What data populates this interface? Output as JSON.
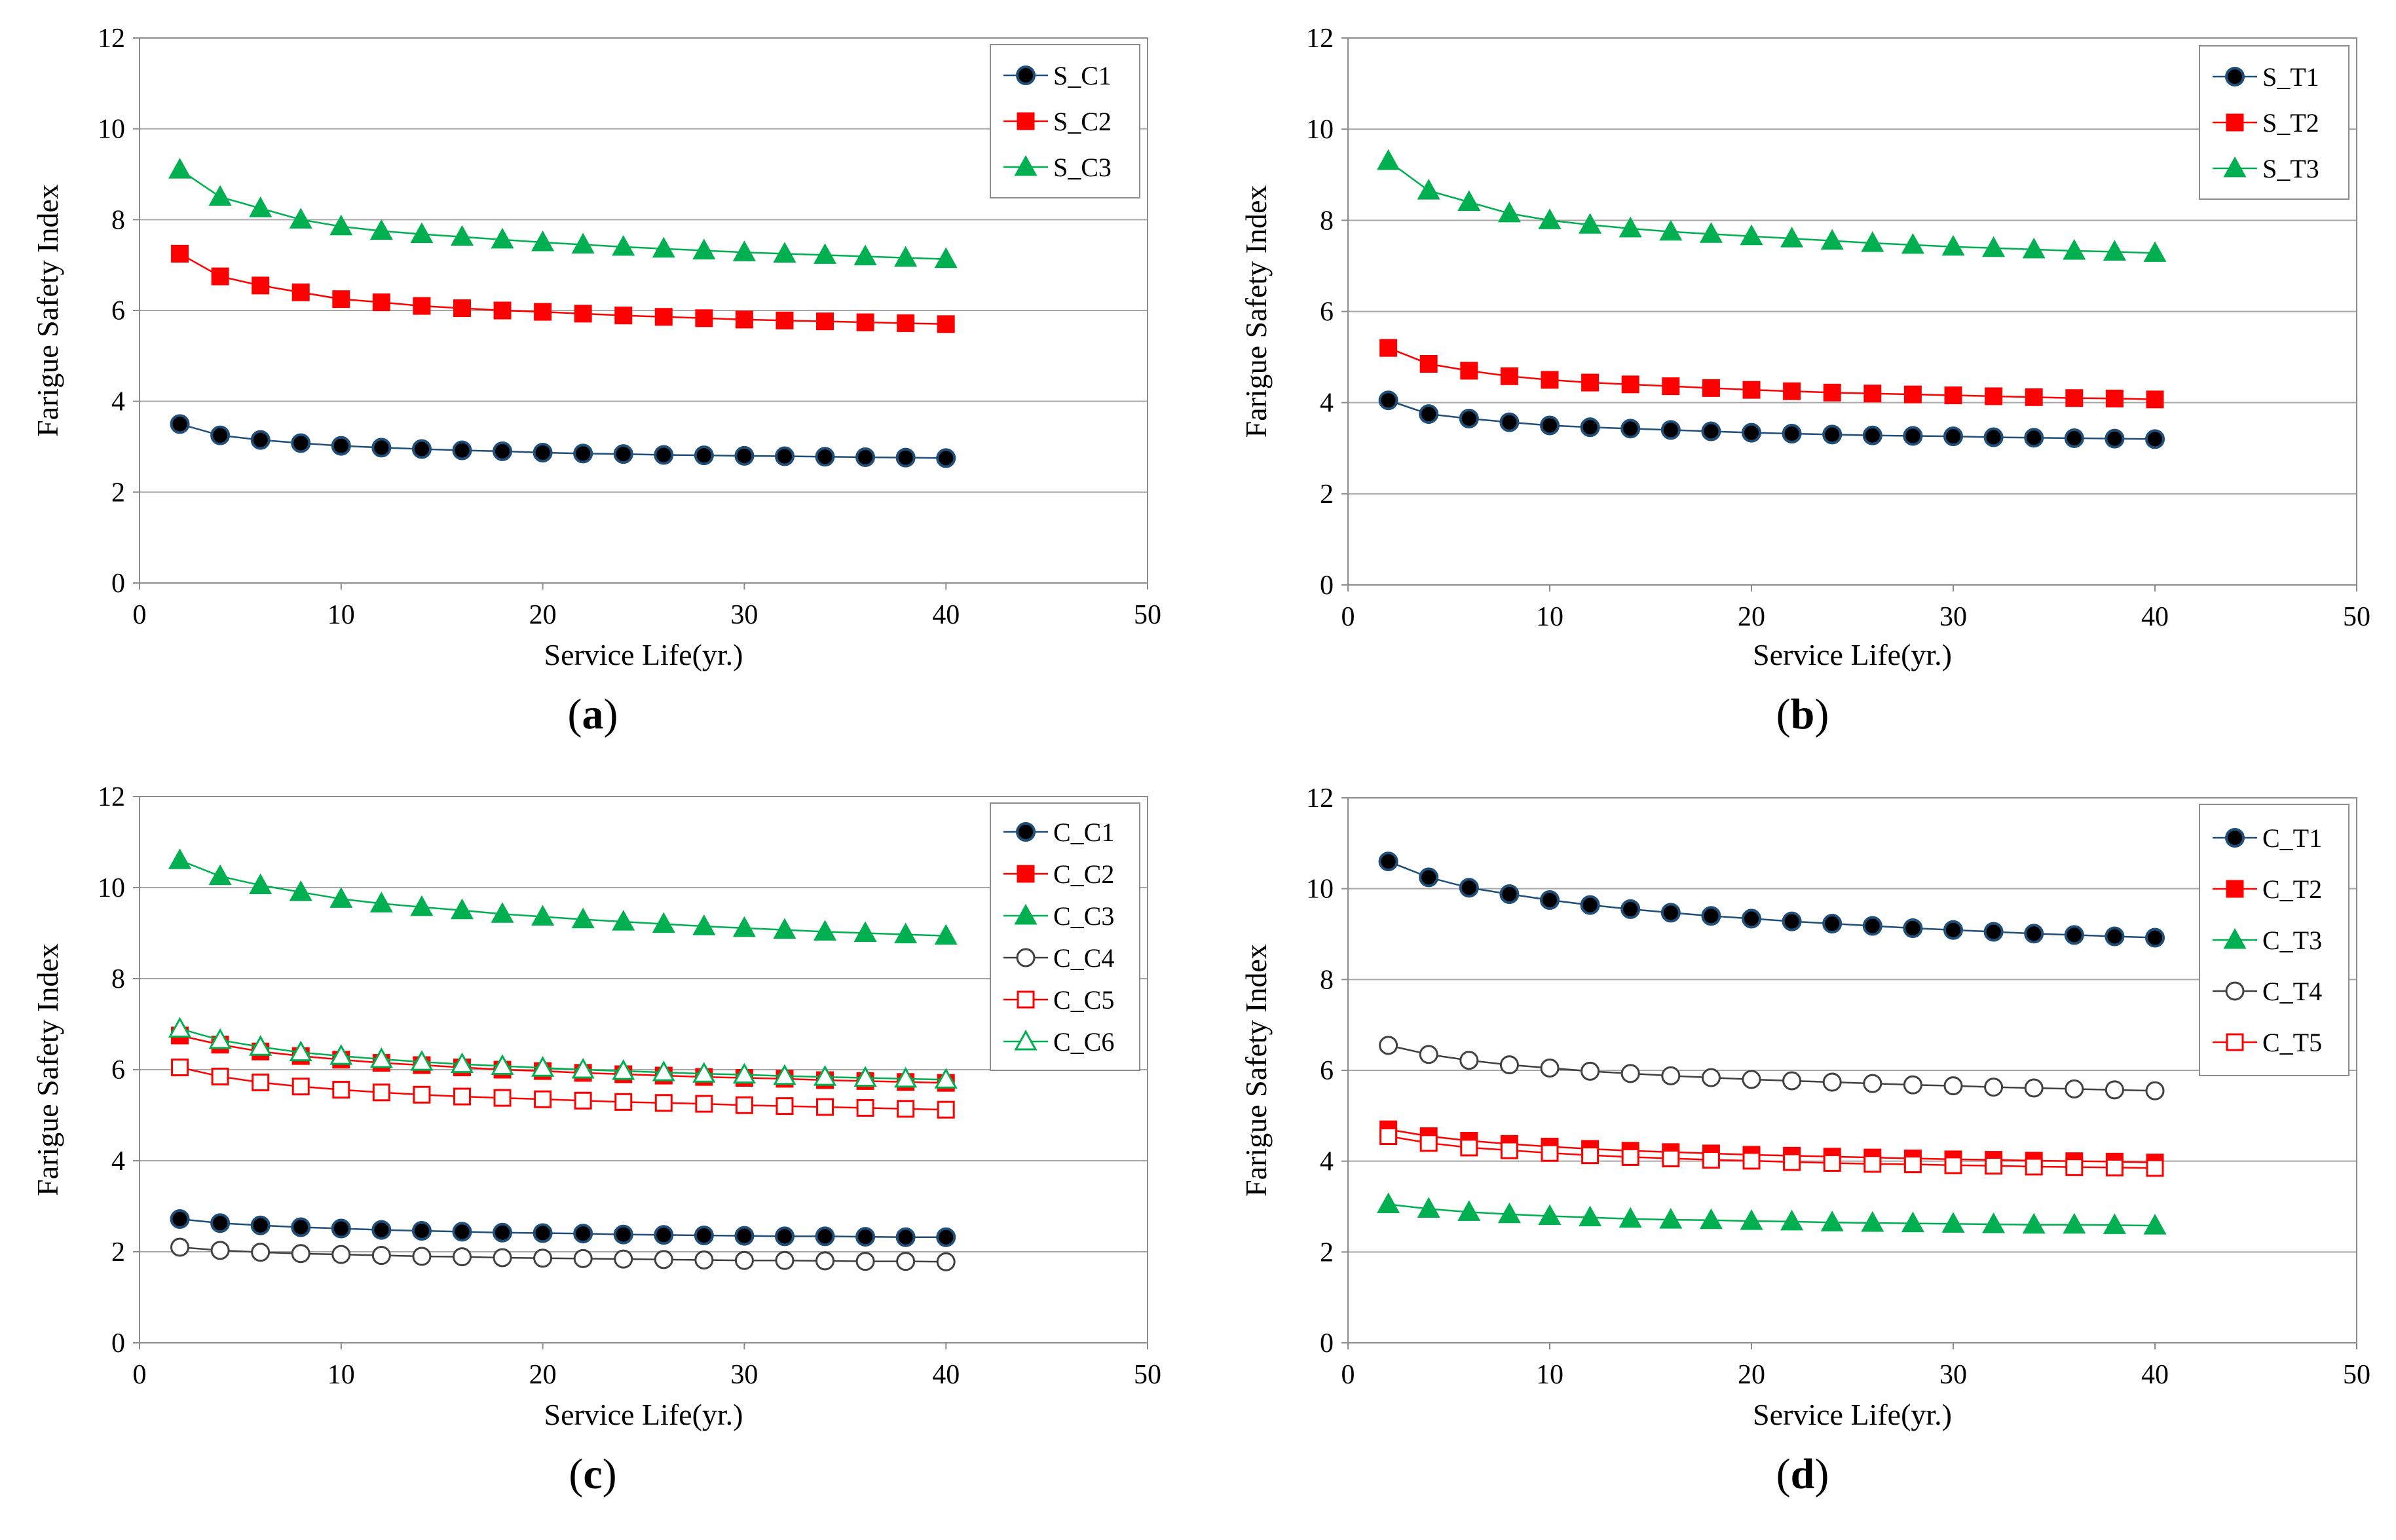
{
  "chart_data": [
    {
      "type": "line",
      "panel_label": "(a)",
      "panel_letter": "a",
      "xlabel": "Service Life(yr.)",
      "ylabel": "Farigue Safety Index",
      "xlim": [
        0,
        50
      ],
      "ylim": [
        0,
        12
      ],
      "xticks": [
        0,
        10,
        20,
        30,
        40,
        50
      ],
      "yticks": [
        0,
        2,
        4,
        6,
        8,
        10,
        12
      ],
      "grid": "horizontal",
      "legend": "top-right",
      "x": [
        2,
        4,
        6,
        8,
        10,
        12,
        14,
        16,
        18,
        20,
        22,
        24,
        26,
        28,
        30,
        32,
        34,
        36,
        38,
        40
      ],
      "series": [
        {
          "name": "S_C1",
          "color": "#1f4e79",
          "marker": "circle-filled",
          "values": [
            3.5,
            3.25,
            3.15,
            3.08,
            3.02,
            2.98,
            2.95,
            2.92,
            2.9,
            2.87,
            2.85,
            2.84,
            2.82,
            2.81,
            2.8,
            2.79,
            2.78,
            2.77,
            2.76,
            2.75
          ]
        },
        {
          "name": "S_C2",
          "color": "#ff0000",
          "marker": "square-filled",
          "values": [
            7.25,
            6.75,
            6.55,
            6.4,
            6.25,
            6.18,
            6.1,
            6.05,
            6.0,
            5.97,
            5.93,
            5.89,
            5.86,
            5.83,
            5.8,
            5.78,
            5.76,
            5.74,
            5.72,
            5.7
          ]
        },
        {
          "name": "S_C3",
          "color": "#00b050",
          "marker": "triangle-filled",
          "values": [
            9.1,
            8.5,
            8.25,
            8.0,
            7.85,
            7.75,
            7.68,
            7.62,
            7.56,
            7.5,
            7.45,
            7.4,
            7.36,
            7.32,
            7.28,
            7.25,
            7.22,
            7.19,
            7.16,
            7.13
          ]
        }
      ]
    },
    {
      "type": "line",
      "panel_label": "(b)",
      "panel_letter": "b",
      "xlabel": "Service Life(yr.)",
      "ylabel": "Farigue Safety Index",
      "xlim": [
        0,
        50
      ],
      "ylim": [
        0,
        12
      ],
      "xticks": [
        0,
        10,
        20,
        30,
        40,
        50
      ],
      "yticks": [
        0,
        2,
        4,
        6,
        8,
        10,
        12
      ],
      "grid": "horizontal",
      "legend": "top-right",
      "x": [
        2,
        4,
        6,
        8,
        10,
        12,
        14,
        16,
        18,
        20,
        22,
        24,
        26,
        28,
        30,
        32,
        34,
        36,
        38,
        40
      ],
      "series": [
        {
          "name": "S_T1",
          "color": "#1f4e79",
          "marker": "circle-filled",
          "values": [
            4.05,
            3.75,
            3.65,
            3.57,
            3.5,
            3.46,
            3.43,
            3.4,
            3.37,
            3.34,
            3.32,
            3.3,
            3.28,
            3.27,
            3.26,
            3.24,
            3.23,
            3.22,
            3.21,
            3.2
          ]
        },
        {
          "name": "S_T2",
          "color": "#ff0000",
          "marker": "square-filled",
          "values": [
            5.2,
            4.85,
            4.7,
            4.58,
            4.5,
            4.44,
            4.4,
            4.36,
            4.32,
            4.28,
            4.25,
            4.22,
            4.2,
            4.18,
            4.16,
            4.14,
            4.12,
            4.1,
            4.09,
            4.07
          ]
        },
        {
          "name": "S_T3",
          "color": "#00b050",
          "marker": "triangle-filled",
          "values": [
            9.3,
            8.65,
            8.4,
            8.15,
            8.0,
            7.9,
            7.82,
            7.75,
            7.7,
            7.65,
            7.6,
            7.55,
            7.5,
            7.46,
            7.42,
            7.39,
            7.36,
            7.33,
            7.31,
            7.28
          ]
        }
      ]
    },
    {
      "type": "line",
      "panel_label": "(c)",
      "panel_letter": "c",
      "xlabel": "Service Life(yr.)",
      "ylabel": "Farigue Safety Index",
      "xlim": [
        0,
        50
      ],
      "ylim": [
        0,
        12
      ],
      "xticks": [
        0,
        10,
        20,
        30,
        40,
        50
      ],
      "yticks": [
        0,
        2,
        4,
        6,
        8,
        10,
        12
      ],
      "grid": "horizontal",
      "legend": "top-right",
      "x": [
        2,
        4,
        6,
        8,
        10,
        12,
        14,
        16,
        18,
        20,
        22,
        24,
        26,
        28,
        30,
        32,
        34,
        36,
        38,
        40
      ],
      "series": [
        {
          "name": "C_C1",
          "color": "#1f4e79",
          "marker": "circle-filled",
          "values": [
            2.72,
            2.63,
            2.58,
            2.54,
            2.51,
            2.48,
            2.46,
            2.44,
            2.42,
            2.41,
            2.4,
            2.38,
            2.37,
            2.36,
            2.35,
            2.34,
            2.34,
            2.33,
            2.32,
            2.32
          ]
        },
        {
          "name": "C_C2",
          "color": "#ff0000",
          "marker": "square-filled",
          "values": [
            6.75,
            6.55,
            6.4,
            6.3,
            6.22,
            6.15,
            6.1,
            6.05,
            6.0,
            5.97,
            5.93,
            5.9,
            5.87,
            5.84,
            5.82,
            5.8,
            5.77,
            5.75,
            5.73,
            5.71
          ]
        },
        {
          "name": "C_C3",
          "color": "#00b050",
          "marker": "triangle-filled",
          "values": [
            10.6,
            10.25,
            10.05,
            9.9,
            9.75,
            9.65,
            9.57,
            9.5,
            9.42,
            9.36,
            9.3,
            9.25,
            9.2,
            9.15,
            9.11,
            9.07,
            9.03,
            9.0,
            8.97,
            8.94
          ]
        },
        {
          "name": "C_C4",
          "color": "#404040",
          "marker": "circle-open",
          "values": [
            2.1,
            2.03,
            1.99,
            1.96,
            1.94,
            1.92,
            1.9,
            1.89,
            1.87,
            1.86,
            1.85,
            1.84,
            1.83,
            1.82,
            1.81,
            1.81,
            1.8,
            1.79,
            1.79,
            1.78
          ]
        },
        {
          "name": "C_C5",
          "color": "#ff0000",
          "marker": "square-open",
          "values": [
            6.05,
            5.85,
            5.72,
            5.63,
            5.56,
            5.5,
            5.45,
            5.41,
            5.38,
            5.35,
            5.32,
            5.29,
            5.27,
            5.25,
            5.22,
            5.2,
            5.18,
            5.16,
            5.14,
            5.12
          ]
        },
        {
          "name": "C_C6",
          "color": "#00b050",
          "marker": "triangle-open",
          "values": [
            6.9,
            6.65,
            6.5,
            6.38,
            6.3,
            6.23,
            6.17,
            6.12,
            6.08,
            6.04,
            6.0,
            5.97,
            5.94,
            5.91,
            5.89,
            5.86,
            5.84,
            5.82,
            5.8,
            5.78
          ]
        }
      ]
    },
    {
      "type": "line",
      "panel_label": "(d)",
      "panel_letter": "d",
      "xlabel": "Service Life(yr.)",
      "ylabel": "Farigue Safety Index",
      "xlim": [
        0,
        50
      ],
      "ylim": [
        0,
        12
      ],
      "xticks": [
        0,
        10,
        20,
        30,
        40,
        50
      ],
      "yticks": [
        0,
        2,
        4,
        6,
        8,
        10,
        12
      ],
      "grid": "horizontal",
      "legend": "top-right",
      "x": [
        2,
        4,
        6,
        8,
        10,
        12,
        14,
        16,
        18,
        20,
        22,
        24,
        26,
        28,
        30,
        32,
        34,
        36,
        38,
        40
      ],
      "series": [
        {
          "name": "C_T1",
          "color": "#1f4e79",
          "marker": "circle-filled",
          "values": [
            10.6,
            10.25,
            10.02,
            9.88,
            9.75,
            9.64,
            9.55,
            9.47,
            9.4,
            9.34,
            9.28,
            9.23,
            9.18,
            9.13,
            9.09,
            9.05,
            9.01,
            8.98,
            8.95,
            8.92
          ]
        },
        {
          "name": "C_T2",
          "color": "#ff0000",
          "marker": "square-filled",
          "values": [
            4.7,
            4.55,
            4.45,
            4.38,
            4.32,
            4.27,
            4.23,
            4.2,
            4.17,
            4.14,
            4.12,
            4.1,
            4.08,
            4.06,
            4.04,
            4.03,
            4.01,
            4.0,
            3.99,
            3.97
          ]
        },
        {
          "name": "C_T3",
          "color": "#00b050",
          "marker": "triangle-filled",
          "values": [
            3.05,
            2.95,
            2.88,
            2.83,
            2.79,
            2.76,
            2.73,
            2.71,
            2.7,
            2.68,
            2.67,
            2.65,
            2.64,
            2.63,
            2.62,
            2.61,
            2.6,
            2.6,
            2.59,
            2.58
          ]
        },
        {
          "name": "C_T4",
          "color": "#404040",
          "marker": "circle-open",
          "values": [
            6.55,
            6.35,
            6.22,
            6.12,
            6.05,
            5.98,
            5.93,
            5.88,
            5.84,
            5.8,
            5.77,
            5.74,
            5.71,
            5.68,
            5.66,
            5.63,
            5.61,
            5.59,
            5.57,
            5.55
          ]
        },
        {
          "name": "C_T5",
          "color": "#ff0000",
          "marker": "square-open",
          "values": [
            4.55,
            4.4,
            4.3,
            4.24,
            4.18,
            4.13,
            4.09,
            4.06,
            4.03,
            4.01,
            3.98,
            3.96,
            3.94,
            3.93,
            3.91,
            3.9,
            3.88,
            3.87,
            3.86,
            3.85
          ]
        }
      ]
    }
  ]
}
